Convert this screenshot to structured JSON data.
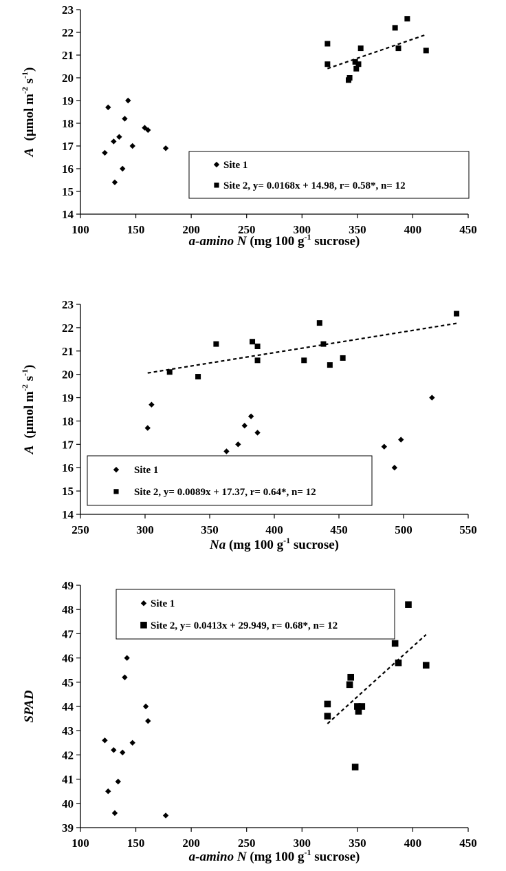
{
  "chart_data": [
    {
      "type": "scatter",
      "xlim": [
        100,
        450
      ],
      "ylim": [
        14,
        23
      ],
      "xticks": [
        "100",
        "150",
        "200",
        "250",
        "300",
        "350",
        "400",
        "450"
      ],
      "yticks": [
        "14",
        "15",
        "16",
        "17",
        "18",
        "19",
        "20",
        "21",
        "22",
        "23"
      ],
      "xlabel": {
        "italic": "a-amino N",
        "prefix": " (mg 100 g",
        "sup": "-1",
        "suffix": " sucrose)"
      },
      "ylabel": {
        "italic": "A",
        "text": "(µmol m",
        "sup1": "-2",
        "mid": " s",
        "sup2": "-1",
        "end": ")"
      },
      "legend_position": "lower-right",
      "series": [
        {
          "name": "Site 1",
          "marker": "diamond",
          "points": [
            [
              122,
              16.7
            ],
            [
              125,
              18.7
            ],
            [
              130,
              17.2
            ],
            [
              131,
              15.4
            ],
            [
              135,
              17.4
            ],
            [
              138,
              16.0
            ],
            [
              140,
              18.2
            ],
            [
              143,
              19.0
            ],
            [
              147,
              17.0
            ],
            [
              158,
              17.8
            ],
            [
              161,
              17.7
            ],
            [
              177,
              16.9
            ]
          ]
        },
        {
          "name": "Site 2, y= 0.0168x + 14.98, r= 0.58*, n= 12",
          "marker": "square",
          "points": [
            [
              323,
              21.5
            ],
            [
              323,
              20.6
            ],
            [
              342,
              19.9
            ],
            [
              343,
              20.0
            ],
            [
              348,
              20.7
            ],
            [
              349,
              20.4
            ],
            [
              351,
              20.6
            ],
            [
              353,
              21.3
            ],
            [
              384,
              22.2
            ],
            [
              387,
              21.3
            ],
            [
              395,
              22.6
            ],
            [
              412,
              21.2
            ]
          ],
          "trend": {
            "slope": 0.0168,
            "intercept": 14.98,
            "x_range": [
              323,
              412
            ]
          }
        }
      ]
    },
    {
      "type": "scatter",
      "xlim": [
        250,
        550
      ],
      "ylim": [
        14,
        23
      ],
      "xticks": [
        "250",
        "300",
        "350",
        "400",
        "450",
        "500",
        "550"
      ],
      "yticks": [
        "14",
        "15",
        "16",
        "17",
        "18",
        "19",
        "20",
        "21",
        "22",
        "23"
      ],
      "xlabel": {
        "italic": "Na",
        "prefix": " (mg 100 g",
        "sup": "-1",
        "suffix": " sucrose)"
      },
      "ylabel": {
        "italic": "A",
        "text": "(µmol m",
        "sup1": "-2",
        "mid": " s",
        "sup2": "-1",
        "end": ")"
      },
      "legend_position": "lower-left",
      "series": [
        {
          "name": "Site 1",
          "marker": "diamond",
          "points": [
            [
              302,
              17.7
            ],
            [
              305,
              18.7
            ],
            [
              363,
              16.7
            ],
            [
              372,
              17.0
            ],
            [
              377,
              17.8
            ],
            [
              382,
              18.2
            ],
            [
              387,
              17.5
            ],
            [
              485,
              16.9
            ],
            [
              493,
              16.0
            ],
            [
              498,
              17.2
            ],
            [
              522,
              19.0
            ]
          ]
        },
        {
          "name": "Site 2, y= 0.0089x + 17.37, r= 0.64*, n= 12",
          "marker": "square",
          "points": [
            [
              319,
              20.1
            ],
            [
              341,
              19.9
            ],
            [
              355,
              21.3
            ],
            [
              383,
              21.4
            ],
            [
              387,
              21.2
            ],
            [
              387,
              20.6
            ],
            [
              423,
              20.6
            ],
            [
              435,
              22.2
            ],
            [
              438,
              21.3
            ],
            [
              443,
              20.4
            ],
            [
              453,
              20.7
            ],
            [
              541,
              22.6
            ]
          ],
          "trend": {
            "slope": 0.0089,
            "intercept": 17.37,
            "x_range": [
              302,
              541
            ]
          }
        }
      ]
    },
    {
      "type": "scatter",
      "xlim": [
        100,
        450
      ],
      "ylim": [
        39,
        49
      ],
      "xticks": [
        "100",
        "150",
        "200",
        "250",
        "300",
        "350",
        "400",
        "450"
      ],
      "yticks": [
        "39",
        "40",
        "41",
        "42",
        "43",
        "44",
        "45",
        "46",
        "47",
        "48",
        "49"
      ],
      "xlabel": {
        "italic": "a-amino N",
        "prefix": " (mg 100 g",
        "sup": "-1",
        "suffix": " sucrose)"
      },
      "ylabel": {
        "italic": "SPAD"
      },
      "legend_position": "top-left",
      "series": [
        {
          "name": "Site 1",
          "marker": "diamond",
          "points": [
            [
              122,
              42.6
            ],
            [
              125,
              40.5
            ],
            [
              130,
              42.2
            ],
            [
              131,
              39.6
            ],
            [
              134,
              40.9
            ],
            [
              138,
              42.1
            ],
            [
              140,
              45.2
            ],
            [
              142,
              46.0
            ],
            [
              147,
              42.5
            ],
            [
              159,
              44.0
            ],
            [
              161,
              43.4
            ],
            [
              177,
              39.5
            ]
          ]
        },
        {
          "name": "Site 2, y= 0.0413x + 29.949, r= 0.68*, n= 12",
          "marker": "square",
          "points": [
            [
              323,
              44.1
            ],
            [
              323,
              43.6
            ],
            [
              343,
              44.9
            ],
            [
              344,
              45.2
            ],
            [
              348,
              41.5
            ],
            [
              350,
              44.0
            ],
            [
              351,
              43.8
            ],
            [
              354,
              44.0
            ],
            [
              384,
              46.6
            ],
            [
              387,
              45.8
            ],
            [
              396,
              48.2
            ],
            [
              412,
              45.7
            ]
          ],
          "trend": {
            "slope": 0.0413,
            "intercept": 29.949,
            "x_range": [
              323,
              412
            ]
          }
        }
      ]
    }
  ]
}
